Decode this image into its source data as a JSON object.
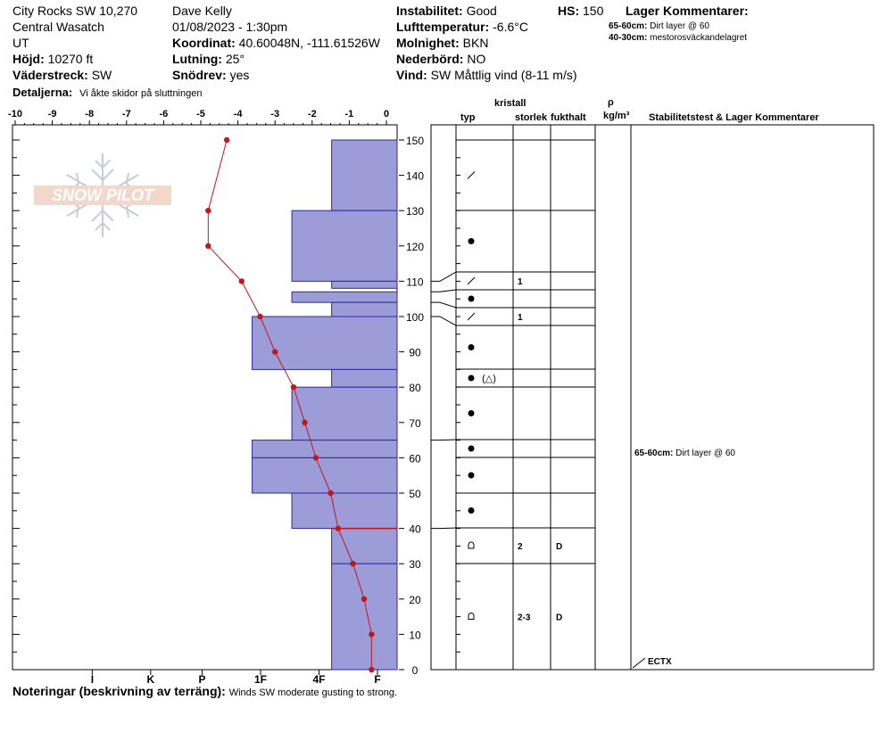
{
  "header": {
    "location": "City Rocks SW 10,270",
    "range": "Central Wasatch",
    "state": "UT",
    "elevation_label": "Höjd:",
    "elevation_value": "10270 ft",
    "aspect_label": "Väderstreck:",
    "aspect_value": "SW",
    "details_label": "Detaljerna:",
    "details_value": "Vi åkte skidor på sluttningen",
    "observer": "Dave Kelly",
    "datetime": "01/08/2023 - 1:30pm",
    "coord_label": "Koordinat:",
    "coord_value": "40.60048N, -111.61526W",
    "slope_label": "Lutning:",
    "slope_value": "25°",
    "drift_label": "Snödrev:",
    "drift_value": "yes",
    "stability_label": "Instabilitet:",
    "stability_value": "Good",
    "airtemp_label": "Lufttemperatur:",
    "airtemp_value": "-6.6°C",
    "sky_label": "Molnighet:",
    "sky_value": "BKN",
    "precip_label": "Nederbörd:",
    "precip_value": "NO",
    "wind_label": "Vind:",
    "wind_value": "SW  Måttlig vind (8-11 m/s)",
    "hs_label": "HS:",
    "hs_value": "150",
    "layer_comments_title": "Lager Kommentarer:",
    "layer_comments": [
      {
        "depth": "65-60cm:",
        "text": "Dirt layer @ 60"
      },
      {
        "depth": "40-30cm:",
        "text": "mestorosväckandelagret"
      }
    ]
  },
  "footer": {
    "notes_label": "Noteringar (beskrivning av terräng):",
    "notes_value": "Winds SW moderate gusting to strong."
  },
  "logo": {
    "text": "SNOW PILOT"
  },
  "columns": {
    "kristall": "kristall",
    "typ": "typ",
    "storlek": "storlek",
    "fukthalt": "fukthalt",
    "rho": "ρ",
    "density_unit": "kg/m³",
    "stability": "Stabilitetstest & Lager Kommentarer"
  },
  "stability_comment": {
    "depth": "65-60cm:",
    "text": "Dirt layer @ 60"
  },
  "ectx_label": "ECTX",
  "colors": {
    "hardness_fill": "#9c9cd8",
    "hardness_stroke": "#2a2aa0",
    "temp_line": "#c0181c",
    "grid": "#000000"
  },
  "chart_data": {
    "type": "snow_profile",
    "temp_axis": {
      "ticks": [
        "-10",
        "-9",
        "-8",
        "-7",
        "-6",
        "-5",
        "-4",
        "-3",
        "-2",
        "-1",
        "0"
      ],
      "range": [
        -10,
        0
      ]
    },
    "hardness_axis": {
      "ticks": [
        "I",
        "K",
        "P",
        "1F",
        "4F",
        "F"
      ]
    },
    "height_axis": {
      "ticks": [
        "0",
        "10",
        "20",
        "30",
        "40",
        "50",
        "60",
        "70",
        "80",
        "90",
        "100",
        "110",
        "120",
        "130",
        "140",
        "150"
      ],
      "range": [
        0,
        150
      ]
    },
    "temperature_profile": [
      {
        "height": 150,
        "temp": -4.3
      },
      {
        "height": 130,
        "temp": -4.8
      },
      {
        "height": 120,
        "temp": -4.8
      },
      {
        "height": 110,
        "temp": -3.9
      },
      {
        "height": 100,
        "temp": -3.4
      },
      {
        "height": 90,
        "temp": -3.0
      },
      {
        "height": 80,
        "temp": -2.5
      },
      {
        "height": 70,
        "temp": -2.2
      },
      {
        "height": 60,
        "temp": -1.9
      },
      {
        "height": 50,
        "temp": -1.5
      },
      {
        "height": 40,
        "temp": -1.3
      },
      {
        "height": 30,
        "temp": -0.9
      },
      {
        "height": 20,
        "temp": -0.6
      },
      {
        "height": 10,
        "temp": -0.4
      },
      {
        "height": 0,
        "temp": -0.4
      }
    ],
    "layers": [
      {
        "top": 150,
        "bottom": 130,
        "hardness": "4F-",
        "hardness_value": 2.8,
        "grain": "new-snow",
        "size": "",
        "moisture": ""
      },
      {
        "top": 130,
        "bottom": 110,
        "hardness": "1F",
        "hardness_value": 4.5,
        "grain": "round",
        "size": "",
        "moisture": ""
      },
      {
        "top": 110,
        "bottom": 108,
        "hardness": "4F-",
        "hardness_value": 2.8,
        "grain": "new-snow",
        "size": "1",
        "moisture": ""
      },
      {
        "top": 107,
        "bottom": 104,
        "hardness": "1F",
        "hardness_value": 4.5,
        "grain": "round",
        "size": "",
        "moisture": ""
      },
      {
        "top": 104,
        "bottom": 100,
        "hardness": "4F-",
        "hardness_value": 2.8,
        "grain": "new-snow",
        "size": "1",
        "moisture": ""
      },
      {
        "top": 100,
        "bottom": 85,
        "hardness": "P",
        "hardness_value": 6.2,
        "grain": "round",
        "size": "",
        "moisture": ""
      },
      {
        "top": 85,
        "bottom": 80,
        "hardness": "4F-",
        "hardness_value": 2.8,
        "grain": "round-faceted",
        "size": "",
        "moisture": ""
      },
      {
        "top": 80,
        "bottom": 65,
        "hardness": "1F",
        "hardness_value": 4.5,
        "grain": "round",
        "size": "",
        "moisture": ""
      },
      {
        "top": 65,
        "bottom": 60,
        "hardness": "P",
        "hardness_value": 6.2,
        "grain": "round",
        "size": "",
        "moisture": ""
      },
      {
        "top": 60,
        "bottom": 50,
        "hardness": "P",
        "hardness_value": 6.2,
        "grain": "round",
        "size": "",
        "moisture": ""
      },
      {
        "top": 50,
        "bottom": 40,
        "hardness": "1F",
        "hardness_value": 4.5,
        "grain": "round",
        "size": "",
        "moisture": ""
      },
      {
        "top": 40,
        "bottom": 30,
        "hardness": "4F-",
        "hardness_value": 2.8,
        "grain": "depth-hoar",
        "size": "2",
        "moisture": "D"
      },
      {
        "top": 30,
        "bottom": 0,
        "hardness": "4F-",
        "hardness_value": 2.8,
        "grain": "depth-hoar",
        "size": "2-3",
        "moisture": "D"
      }
    ],
    "stability_test": {
      "result": "ECTX",
      "height": 0
    }
  }
}
